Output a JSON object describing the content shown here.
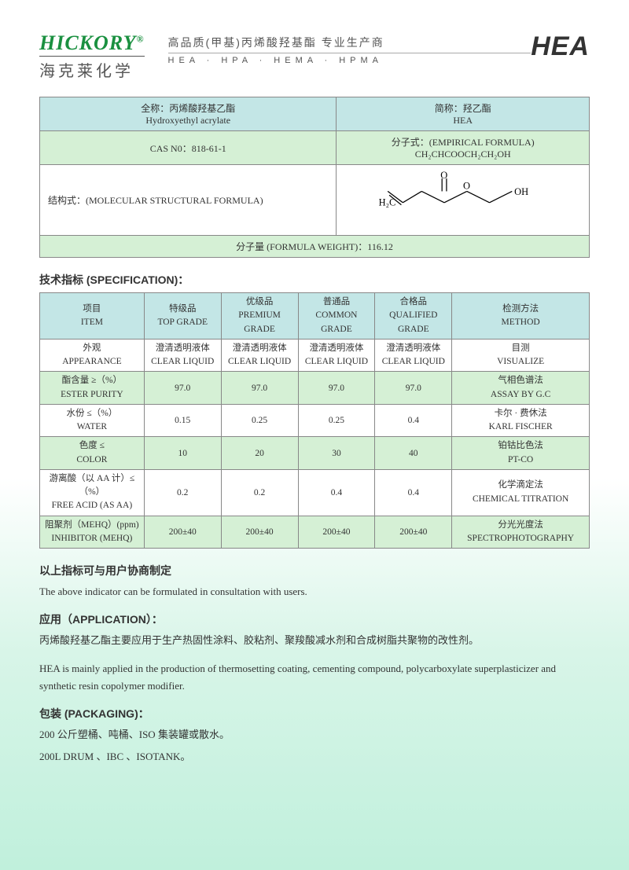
{
  "header": {
    "brand": "HICKORY",
    "brand_cn": "海克莱化学",
    "tagline_cn": "高品质(甲基)丙烯酸羟基酯 专业生产商",
    "tagline_en": "HEA · HPA · HEMA · HPMA",
    "product_logo": "HEA"
  },
  "info": {
    "fullname_cn": "全称：丙烯酸羟基乙酯",
    "fullname_en": "Hydroxyethyl acrylate",
    "abbr_cn": "简称：羟乙酯",
    "abbr_en": "HEA",
    "cas_label": "CAS N0：818-61-1",
    "empirical_label": "分子式：(EMPIRICAL FORMULA)",
    "empirical_formula": "CH₂CHCOOCH₂CH₂OH",
    "structural_label": "结构式：(MOLECULAR STRUCTURAL FORMULA)",
    "weight_label": "分子量 (FORMULA WEIGHT)：116.12"
  },
  "spec": {
    "title_cn": "技术指标 (SPECIFICATION)：",
    "head": {
      "item_cn": "项目",
      "item_en": "ITEM",
      "top_cn": "特级品",
      "top_en": "TOP GRADE",
      "prem_cn": "优级品",
      "prem_en": "PREMIUM GRADE",
      "com_cn": "普通品",
      "com_en": "COMMON GRADE",
      "qual_cn": "合格品",
      "qual_en": "QUALIFIED GRADE",
      "method_cn": "检测方法",
      "method_en": "METHOD"
    },
    "rows": [
      {
        "item_cn": "外观",
        "item_en": "APPEARANCE",
        "v": [
          "澄清透明液体",
          "澄清透明液体",
          "澄清透明液体",
          "澄清透明液体"
        ],
        "v_en": [
          "CLEAR LIQUID",
          "CLEAR LIQUID",
          "CLEAR LIQUID",
          "CLEAR LIQUID"
        ],
        "method_cn": "目测",
        "method_en": "VISUALIZE",
        "bg": "white-bg"
      },
      {
        "item_cn": "酯含量 ≥（%）",
        "item_en": "ESTER PURITY",
        "v": [
          "97.0",
          "97.0",
          "97.0",
          "97.0"
        ],
        "method_cn": "气相色谱法",
        "method_en": "ASSAY BY G.C",
        "bg": "green-bg"
      },
      {
        "item_cn": "水份 ≤（%）",
        "item_en": "WATER",
        "v": [
          "0.15",
          "0.25",
          "0.25",
          "0.4"
        ],
        "method_cn": "卡尔 · 费休法",
        "method_en": "KARL FISCHER",
        "bg": "white-bg"
      },
      {
        "item_cn": "色度 ≤",
        "item_en": "COLOR",
        "v": [
          "10",
          "20",
          "30",
          "40"
        ],
        "method_cn": "铂钴比色法",
        "method_en": "PT-CO",
        "bg": "green-bg"
      },
      {
        "item_cn": "游离酸（以 AA 计）≤（%）",
        "item_en": "FREE ACID (AS AA)",
        "v": [
          "0.2",
          "0.2",
          "0.4",
          "0.4"
        ],
        "method_cn": "化学滴定法",
        "method_en": "CHEMICAL TITRATION",
        "bg": "white-bg"
      },
      {
        "item_cn": "阻聚剂（MEHQ）(ppm)",
        "item_en": "INHIBITOR (MEHQ)",
        "v": [
          "200±40",
          "200±40",
          "200±40",
          "200±40"
        ],
        "method_cn": "分光光度法",
        "method_en": "SPECTROPHOTOGRAPHY",
        "bg": "green-bg"
      }
    ]
  },
  "note": {
    "cn": "以上指标可与用户协商制定",
    "en": "The above indicator can be formulated in consultation with users."
  },
  "application": {
    "title": "应用（APPLICATION）：",
    "cn": "丙烯酸羟基乙酯主要应用于生产热固性涂料、胶粘剂、聚羧酸减水剂和合成树脂共聚物的改性剂。",
    "en": "HEA is mainly applied in the production of thermosetting coating, cementing compound, polycarboxylate superplasticizer and synthetic resin copolymer modifier."
  },
  "packaging": {
    "title": "包装 (PACKAGING)：",
    "cn": "200 公斤塑桶、吨桶、ISO 集装罐或散水。",
    "en": "200L DRUM 、IBC 、ISOTANK。"
  },
  "colors": {
    "blue_bg": "#c3e6e6",
    "green_bg": "#d5f0d5",
    "brand_green": "#1a9040",
    "border": "#888888"
  }
}
